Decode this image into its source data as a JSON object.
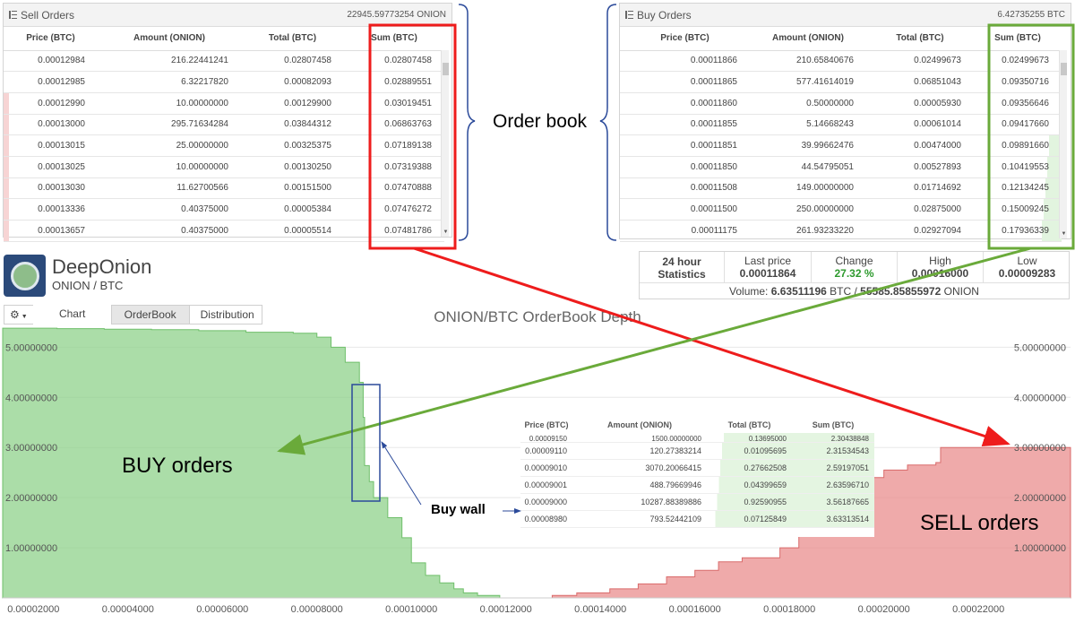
{
  "sell_orders": {
    "title": "Sell Orders",
    "total": "22945.59773254 ONION",
    "columns": [
      "Price (BTC)",
      "Amount (ONION)",
      "Total (BTC)",
      "Sum (BTC)"
    ],
    "rows": [
      [
        "0.00012984",
        "216.22441241",
        "0.02807458",
        "0.02807458"
      ],
      [
        "0.00012985",
        "6.32217820",
        "0.00082093",
        "0.02889551"
      ],
      [
        "0.00012990",
        "10.00000000",
        "0.00129900",
        "0.03019451"
      ],
      [
        "0.00013000",
        "295.71634284",
        "0.03844312",
        "0.06863763"
      ],
      [
        "0.00013015",
        "25.00000000",
        "0.00325375",
        "0.07189138"
      ],
      [
        "0.00013025",
        "10.00000000",
        "0.00130250",
        "0.07319388"
      ],
      [
        "0.00013030",
        "11.62700566",
        "0.00151500",
        "0.07470888"
      ],
      [
        "0.00013336",
        "0.40375000",
        "0.00005384",
        "0.07476272"
      ],
      [
        "0.00013657",
        "0.40375000",
        "0.00005514",
        "0.07481786"
      ]
    ]
  },
  "buy_orders": {
    "title": "Buy Orders",
    "total": "6.42735255 BTC",
    "columns": [
      "Price (BTC)",
      "Amount (ONION)",
      "Total (BTC)",
      "Sum (BTC)"
    ],
    "rows": [
      [
        "0.00011866",
        "210.65840676",
        "0.02499673",
        "0.02499673"
      ],
      [
        "0.00011865",
        "577.41614019",
        "0.06851043",
        "0.09350716"
      ],
      [
        "0.00011860",
        "0.50000000",
        "0.00005930",
        "0.09356646"
      ],
      [
        "0.00011855",
        "5.14668243",
        "0.00061014",
        "0.09417660"
      ],
      [
        "0.00011851",
        "39.99662476",
        "0.00474000",
        "0.09891660"
      ],
      [
        "0.00011850",
        "44.54795051",
        "0.00527893",
        "0.10419553"
      ],
      [
        "0.00011508",
        "149.00000000",
        "0.01714692",
        "0.12134245"
      ],
      [
        "0.00011500",
        "250.00000000",
        "0.02875000",
        "0.15009245"
      ],
      [
        "0.00011175",
        "261.93233220",
        "0.02927094",
        "0.17936339"
      ]
    ]
  },
  "annotations": {
    "order_book": "Order book",
    "buy_orders": "BUY orders",
    "sell_orders": "SELL orders",
    "buy_wall": "Buy wall"
  },
  "brand": {
    "name": "DeepOnion",
    "pair": "ONION / BTC"
  },
  "stats": {
    "heading": "24 hour Statistics",
    "last_price_label": "Last price",
    "last_price": "0.00011864",
    "change_label": "Change",
    "change": "27.32 %",
    "high_label": "High",
    "high": "0.00016000",
    "low_label": "Low",
    "low": "0.00009283",
    "volume_label": "Volume:",
    "volume_btc": "6.63511196",
    "volume_btc_unit": "BTC /",
    "volume_onion": "55585.85855972",
    "volume_onion_unit": "ONION"
  },
  "tabs": {
    "chart": "Chart",
    "orderbook": "OrderBook",
    "distribution": "Distribution"
  },
  "inset": {
    "columns": [
      "Price (BTC)",
      "Amount (ONION)",
      "Total (BTC)",
      "Sum (BTC)"
    ],
    "rows": [
      [
        "0.00009150",
        "1500.00000000",
        "0.13695000",
        "2.30438848"
      ],
      [
        "0.00009110",
        "120.27383214",
        "0.01095695",
        "2.31534543"
      ],
      [
        "0.00009010",
        "3070.20066415",
        "0.27662508",
        "2.59197051"
      ],
      [
        "0.00009001",
        "488.79669946",
        "0.04399659",
        "2.63596710"
      ],
      [
        "0.00009000",
        "10287.88389886",
        "0.92590955",
        "3.56187665"
      ],
      [
        "0.00008980",
        "793.52442109",
        "0.07125849",
        "3.63313514"
      ]
    ]
  },
  "colors": {
    "buy": "#8fd18b",
    "sell": "#e98e8e",
    "red_box": "#ee1c1c",
    "green_box": "#6aaa3a",
    "blue": "#2b4a9a"
  },
  "chart_data": {
    "type": "area",
    "title": "ONION/BTC OrderBook Depth",
    "x_ticks": [
      "0.00002000",
      "0.00004000",
      "0.00006000",
      "0.00008000",
      "0.00010000",
      "0.00012000",
      "0.00014000",
      "0.00016000",
      "0.00018000",
      "0.00020000",
      "0.00022000"
    ],
    "y_ticks": [
      "1.00000000",
      "2.00000000",
      "3.00000000",
      "4.00000000",
      "5.00000000"
    ],
    "xlim": [
      1.35e-05,
      0.0002395
    ],
    "ylim": [
      0,
      5.4
    ],
    "series": [
      {
        "side": "buy",
        "x": [
          1.35e-05,
          2.5e-05,
          3.5e-05,
          4.5e-05,
          5.5e-05,
          6.5e-05,
          7.5e-05,
          8e-05,
          8.3e-05,
          8.6e-05,
          8.9e-05,
          8.98e-05,
          9.01e-05,
          9.11e-05,
          9.2e-05,
          9.5e-05,
          9.8e-05,
          0.0001,
          0.000103,
          0.000106,
          0.000109,
          0.000111,
          0.000114,
          0.0001187
        ],
        "y": [
          5.38,
          5.37,
          5.36,
          5.35,
          5.33,
          5.3,
          5.28,
          5.2,
          5.0,
          4.7,
          4.3,
          3.6,
          2.64,
          2.32,
          2.0,
          1.6,
          1.2,
          0.7,
          0.45,
          0.3,
          0.18,
          0.1,
          0.05,
          0.0
        ]
      },
      {
        "side": "sell",
        "x": [
          0.0001298,
          0.000135,
          0.000142,
          0.000148,
          0.000154,
          0.00016,
          0.000165,
          0.00017,
          0.000178,
          0.000182,
          0.000186,
          0.00019,
          0.000196,
          0.0002,
          0.000205,
          0.000211,
          0.000212,
          0.00022,
          0.0002395
        ],
        "y": [
          0.05,
          0.1,
          0.18,
          0.28,
          0.42,
          0.55,
          0.72,
          0.8,
          1.0,
          1.3,
          1.85,
          2.2,
          2.4,
          2.55,
          2.65,
          2.7,
          3.0,
          3.0,
          3.0
        ]
      }
    ]
  }
}
